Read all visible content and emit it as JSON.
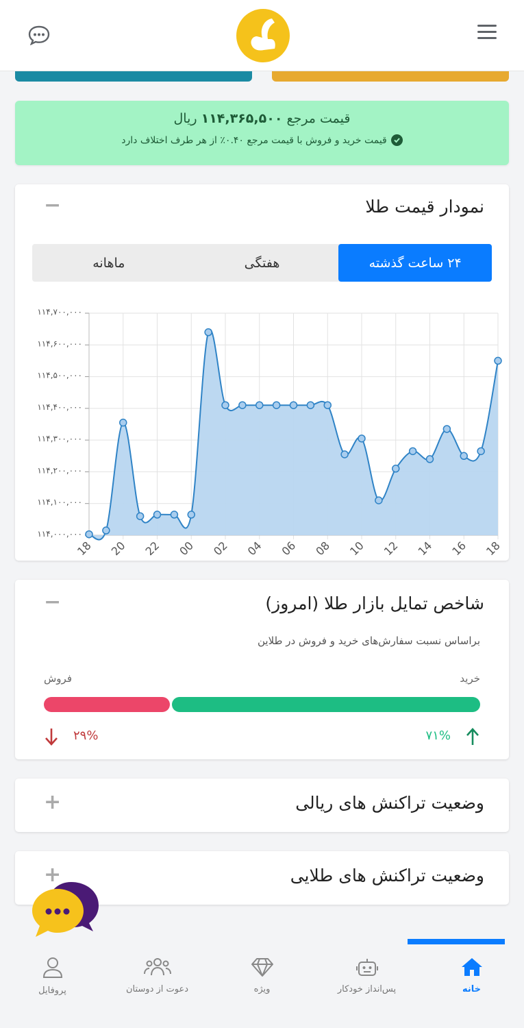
{
  "header": {
    "menu_icon": "hamburger-menu-icon",
    "logo_icon": "brand-logo",
    "chat_icon": "chat-bubble-icon"
  },
  "reference": {
    "label": "قیمت مرجع",
    "value": "۱۱۴,۳۶۵,۵۰۰",
    "unit": "ریال",
    "note": "قیمت خرید و فروش با قیمت مرجع ۰.۴۰٪ از هر طرف اختلاف دارد"
  },
  "gold_chart": {
    "title": "نمودار قیمت طلا",
    "toggle": "−",
    "tabs": [
      {
        "label": "۲۴ ساعت گذشته",
        "active": true
      },
      {
        "label": "هفتگی",
        "active": false
      },
      {
        "label": "ماهانه",
        "active": false
      }
    ]
  },
  "chart_data": {
    "type": "area",
    "title": "",
    "xlabel": "",
    "ylabel": "",
    "x_tick_labels": [
      "18",
      "20",
      "22",
      "00",
      "02",
      "04",
      "06",
      "08",
      "10",
      "12",
      "14",
      "16",
      "18"
    ],
    "y_tick_labels": [
      "۱۱۴,۰۰۰,۰۰۰",
      "۱۱۴,۱۰۰,۰۰۰",
      "۱۱۴,۲۰۰,۰۰۰",
      "۱۱۴,۳۰۰,۰۰۰",
      "۱۱۴,۴۰۰,۰۰۰",
      "۱۱۴,۵۰۰,۰۰۰",
      "۱۱۴,۶۰۰,۰۰۰",
      "۱۱۴,۷۰۰,۰۰۰"
    ],
    "ylim": [
      114000000,
      114700000
    ],
    "xlim": [
      0,
      24
    ],
    "grid": true,
    "color": "#2f83c6",
    "fill": "#b8d6f0",
    "series": [
      {
        "x": [
          0,
          1,
          2,
          3,
          4,
          5,
          6,
          7,
          8,
          9,
          10,
          11,
          12,
          13,
          14,
          15,
          16,
          17,
          18,
          19,
          20,
          21,
          22,
          23,
          24
        ],
        "values": [
          114003000,
          114015000,
          114355000,
          114060000,
          114065000,
          114065000,
          114065000,
          114640000,
          114410000,
          114410000,
          114410000,
          114410000,
          114410000,
          114410000,
          114410000,
          114255000,
          114305000,
          114110000,
          114210000,
          114265000,
          114240000,
          114335000,
          114250000,
          114265000,
          114550000
        ]
      }
    ]
  },
  "sentiment": {
    "title": "شاخص تمایل بازار طلا (امروز)",
    "toggle": "−",
    "subtitle": "براساس نسبت سفارش‌های خرید و فروش در طلاین",
    "buy_label": "خرید",
    "sell_label": "فروش",
    "buy_pct": "۷۱%",
    "sell_pct": "۲۹%",
    "buy_fraction": 0.71,
    "sell_fraction": 0.29,
    "buy_color": "#1dbd83",
    "sell_color": "#ec4669"
  },
  "rial_tx": {
    "title": "وضعیت تراکنش های ریالی",
    "toggle": "+"
  },
  "gold_tx": {
    "title": "وضعیت تراکنش های طلایی",
    "toggle": "+"
  },
  "bottom_nav": [
    {
      "label": "خانه",
      "icon": "home-icon",
      "active": true
    },
    {
      "label": "پس‌انداز خودکار",
      "icon": "robot-icon",
      "active": false
    },
    {
      "label": "ویژه",
      "icon": "diamond-icon",
      "active": false
    },
    {
      "label": "دعوت از دوستان",
      "icon": "users-icon",
      "active": false
    },
    {
      "label": "پروفایل",
      "icon": "user-icon",
      "active": false
    }
  ]
}
